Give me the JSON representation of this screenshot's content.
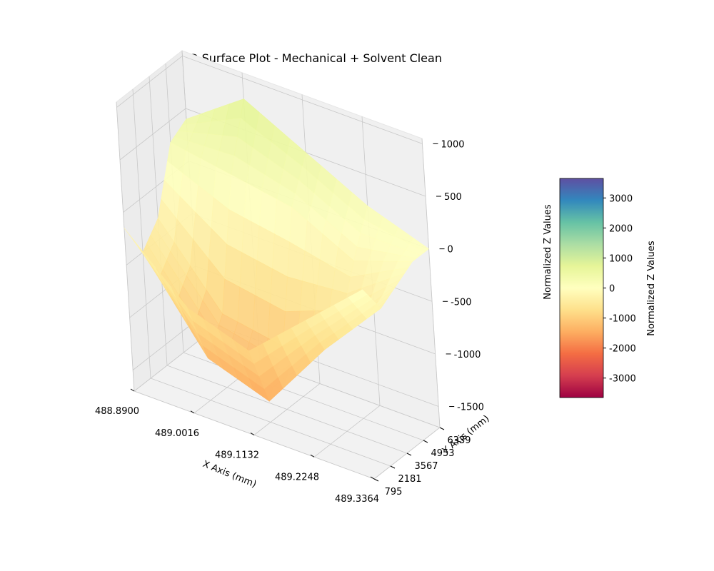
{
  "chart_data": {
    "type": "surface",
    "title": "3D Surface Plot - Mechanical + Solvent Clean",
    "xlabel": "X Axis (mm)",
    "ylabel": "Y Axis (mm)",
    "zlabel": "Normalized Z Values",
    "x_ticks": [
      "488.8900",
      "489.0016",
      "489.1132",
      "489.2248",
      "489.3364"
    ],
    "y_ticks": [
      "795",
      "2181",
      "3567",
      "4953",
      "6339"
    ],
    "z_ticks": [
      "-1500",
      "-1000",
      "-500",
      "0",
      "500",
      "1000"
    ],
    "xlim": [
      488.89,
      489.3364
    ],
    "ylim": [
      795,
      6339
    ],
    "zlim": [
      -1700,
      1050
    ],
    "colormap": "Spectral",
    "colorbar": {
      "label": "Normalized Z Values",
      "ticks": [
        "-3000",
        "-2000",
        "-1000",
        "0",
        "1000",
        "2000",
        "3000"
      ],
      "range": [
        -3650,
        3650
      ]
    },
    "x": [
      488.89,
      489.0016,
      489.1132,
      489.2248,
      489.3364
    ],
    "y": [
      795,
      2181,
      3567,
      4953,
      6339
    ],
    "z": [
      [
        -150,
        -700,
        -900,
        -400,
        100
      ],
      [
        -500,
        -1300,
        -1500,
        -800,
        -200
      ],
      [
        -300,
        -1000,
        -1100,
        -700,
        -100
      ],
      [
        300,
        200,
        100,
        -200,
        0
      ],
      [
        400,
        800,
        500,
        200,
        0
      ]
    ],
    "grid": true
  }
}
